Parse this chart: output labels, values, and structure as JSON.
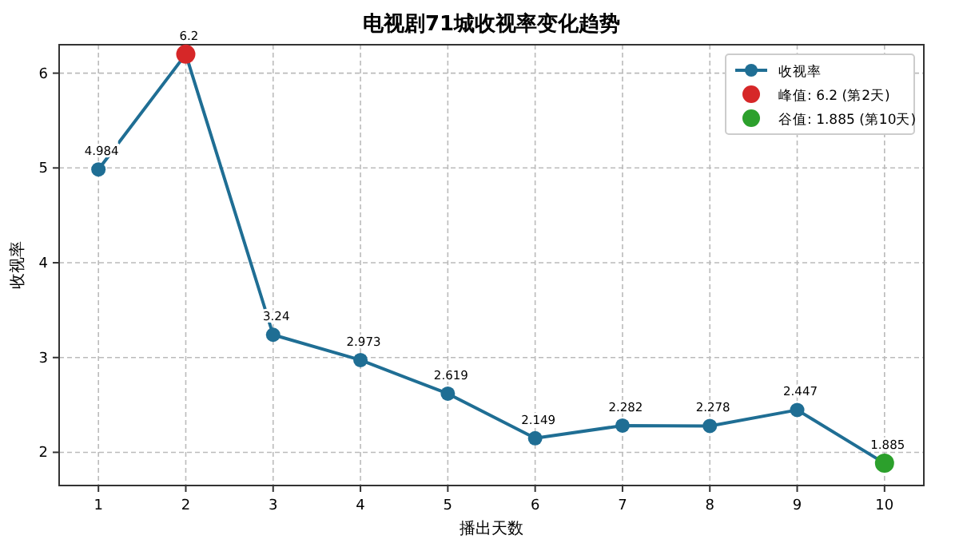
{
  "chart_data": {
    "type": "line",
    "title": "电视剧71城收视率变化趋势",
    "xlabel": "播出天数",
    "ylabel": "收视率",
    "x": [
      1,
      2,
      3,
      4,
      5,
      6,
      7,
      8,
      9,
      10
    ],
    "series": [
      {
        "name": "收视率",
        "color": "#1f6e94",
        "values": [
          4.984,
          6.2,
          3.24,
          2.973,
          2.619,
          2.149,
          2.282,
          2.278,
          2.447,
          1.885
        ],
        "value_labels": [
          "4.984",
          null,
          "3.24",
          "2.973",
          "2.619",
          "2.149",
          "2.282",
          "2.278",
          "2.447",
          null
        ],
        "marker": "circle"
      },
      {
        "name": "峰值: 6.2 (第2天)",
        "type": "scatter",
        "color": "#d62728",
        "x": [
          2
        ],
        "values": [
          6.2
        ],
        "value_labels": [
          "6.2"
        ]
      },
      {
        "name": "谷值: 1.885 (第10天)",
        "type": "scatter",
        "color": "#2ca02c",
        "x": [
          10
        ],
        "values": [
          1.885
        ],
        "value_labels": [
          "1.885"
        ]
      }
    ],
    "xlim": [
      0.55,
      10.45
    ],
    "ylim": [
      1.65,
      6.3
    ],
    "xticks": [
      1,
      2,
      3,
      4,
      5,
      6,
      7,
      8,
      9,
      10
    ],
    "yticks": [
      2,
      3,
      4,
      5,
      6
    ],
    "grid": true,
    "legend": "top right"
  }
}
